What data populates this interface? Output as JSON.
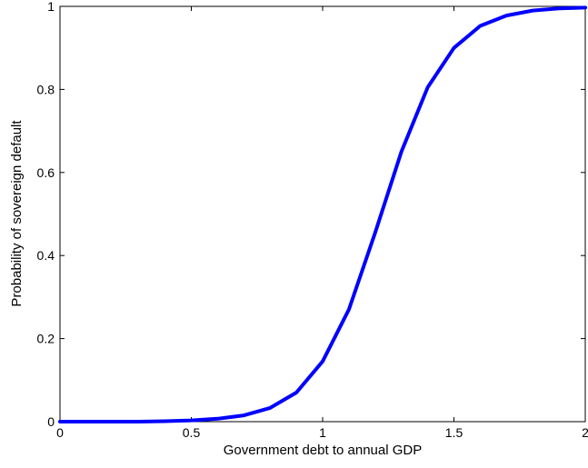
{
  "chart_data": {
    "type": "line",
    "xlabel": "Government debt to annual GDP",
    "ylabel": "Probability of sovereign default",
    "xlim": [
      0,
      2
    ],
    "ylim": [
      0,
      1
    ],
    "x_ticks": [
      "0",
      "0.5",
      "1",
      "1.5",
      "2"
    ],
    "y_ticks": [
      "0",
      "0.2",
      "0.4",
      "0.6",
      "0.8",
      "1"
    ],
    "grid": false,
    "line_color": "#0000ff",
    "series": [
      {
        "x": [
          0,
          0.1,
          0.2,
          0.3,
          0.4,
          0.5,
          0.6,
          0.7,
          0.8,
          0.9,
          1.0,
          1.1,
          1.2,
          1.3,
          1.4,
          1.5,
          1.6,
          1.7,
          1.8,
          1.9,
          2.0
        ],
        "y": [
          0,
          0,
          0,
          0,
          0.001,
          0.003,
          0.007,
          0.015,
          0.033,
          0.07,
          0.145,
          0.27,
          0.455,
          0.65,
          0.805,
          0.9,
          0.953,
          0.978,
          0.99,
          0.995,
          0.997
        ]
      }
    ]
  }
}
